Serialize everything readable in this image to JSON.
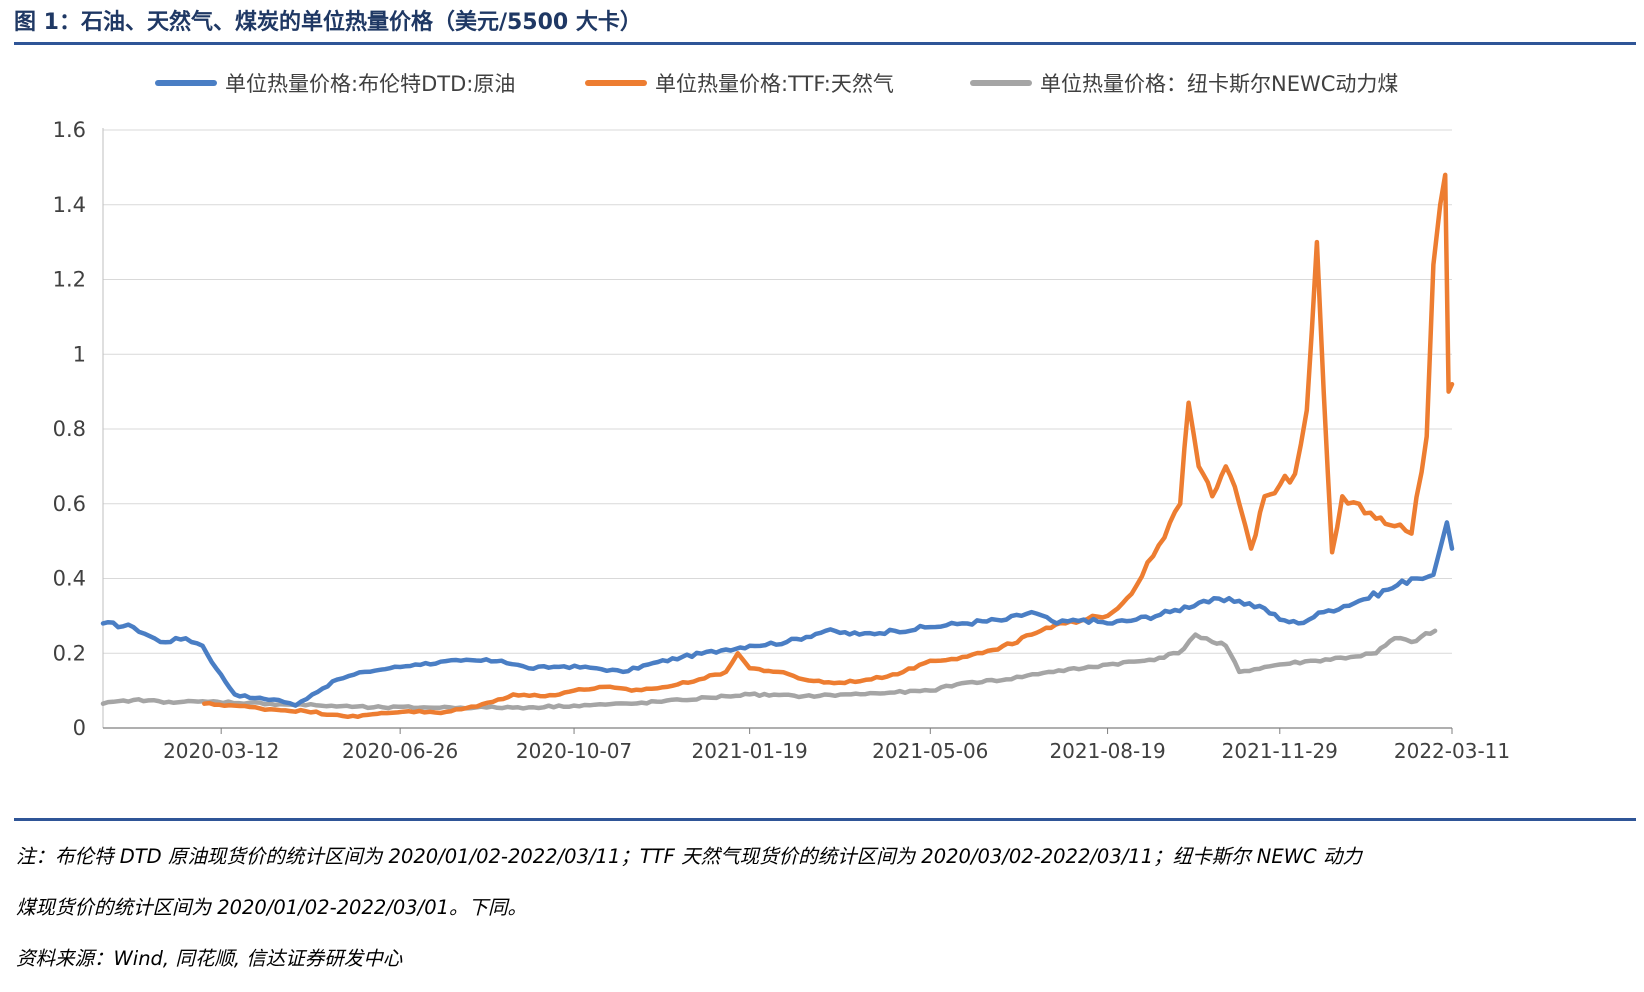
{
  "title": "图 1：石油、天然气、煤炭的单位热量价格（美元/5500 大卡）",
  "notes": {
    "line1": "注：布伦特 DTD 原油现货价的统计区间为 2020/01/02-2022/03/11；TTF 天然气现货价的统计区间为 2020/03/02-2022/03/11；纽卡斯尔 NEWC 动力",
    "line2": "煤现货价的统计区间为 2020/01/02-2022/03/01。下同。",
    "source": "资料来源：Wind, 同花顺, 信达证券研发中心"
  },
  "colors": {
    "title": "#1f3864",
    "rule": "#2f5597",
    "grid": "#d9d9d9",
    "axis_text": "#404040"
  },
  "chart_data": {
    "type": "line",
    "title": "",
    "xlabel": "",
    "ylabel": "",
    "x_ticks": [
      "2020-03-12",
      "2020-06-26",
      "2020-10-07",
      "2021-01-19",
      "2021-05-06",
      "2021-08-19",
      "2021-11-29",
      "2022-03-11"
    ],
    "y_ticks": [
      "0",
      "0.2",
      "0.4",
      "0.6",
      "0.8",
      "1",
      "1.2",
      "1.4",
      "1.6"
    ],
    "ylim": [
      0,
      1.6
    ],
    "xlim": [
      "2020-01-02",
      "2022-03-11"
    ],
    "grid": true,
    "legend_position": "top",
    "series": [
      {
        "name": "单位热量价格:布伦特DTD:原油",
        "color": "#4a7ec4",
        "points": [
          [
            "2020-01-02",
            0.28
          ],
          [
            "2020-01-20",
            0.27
          ],
          [
            "2020-02-05",
            0.23
          ],
          [
            "2020-02-20",
            0.24
          ],
          [
            "2020-03-01",
            0.22
          ],
          [
            "2020-03-09",
            0.16
          ],
          [
            "2020-03-20",
            0.09
          ],
          [
            "2020-04-01",
            0.08
          ],
          [
            "2020-04-15",
            0.075
          ],
          [
            "2020-04-25",
            0.06
          ],
          [
            "2020-05-05",
            0.09
          ],
          [
            "2020-05-20",
            0.13
          ],
          [
            "2020-06-05",
            0.15
          ],
          [
            "2020-06-20",
            0.16
          ],
          [
            "2020-07-05",
            0.17
          ],
          [
            "2020-08-01",
            0.18
          ],
          [
            "2020-08-25",
            0.18
          ],
          [
            "2020-09-10",
            0.16
          ],
          [
            "2020-10-01",
            0.165
          ],
          [
            "2020-10-20",
            0.16
          ],
          [
            "2020-11-05",
            0.15
          ],
          [
            "2020-11-20",
            0.17
          ],
          [
            "2020-12-10",
            0.19
          ],
          [
            "2021-01-05",
            0.21
          ],
          [
            "2021-01-19",
            0.22
          ],
          [
            "2021-02-10",
            0.23
          ],
          [
            "2021-03-05",
            0.26
          ],
          [
            "2021-03-25",
            0.25
          ],
          [
            "2021-04-15",
            0.26
          ],
          [
            "2021-05-06",
            0.27
          ],
          [
            "2021-05-25",
            0.28
          ],
          [
            "2021-06-20",
            0.29
          ],
          [
            "2021-07-05",
            0.31
          ],
          [
            "2021-07-20",
            0.28
          ],
          [
            "2021-08-05",
            0.29
          ],
          [
            "2021-08-19",
            0.28
          ],
          [
            "2021-09-05",
            0.29
          ],
          [
            "2021-09-25",
            0.31
          ],
          [
            "2021-10-15",
            0.34
          ],
          [
            "2021-11-05",
            0.34
          ],
          [
            "2021-11-20",
            0.32
          ],
          [
            "2021-11-29",
            0.29
          ],
          [
            "2021-12-10",
            0.28
          ],
          [
            "2021-12-25",
            0.31
          ],
          [
            "2022-01-15",
            0.34
          ],
          [
            "2022-02-01",
            0.37
          ],
          [
            "2022-02-15",
            0.4
          ],
          [
            "2022-02-28",
            0.41
          ],
          [
            "2022-03-04",
            0.48
          ],
          [
            "2022-03-08",
            0.55
          ],
          [
            "2022-03-11",
            0.48
          ]
        ]
      },
      {
        "name": "单位热量价格:TTF:天然气",
        "color": "#ed7d31",
        "points": [
          [
            "2020-03-02",
            0.065
          ],
          [
            "2020-03-20",
            0.06
          ],
          [
            "2020-04-10",
            0.05
          ],
          [
            "2020-05-01",
            0.045
          ],
          [
            "2020-05-20",
            0.035
          ],
          [
            "2020-06-01",
            0.03
          ],
          [
            "2020-06-15",
            0.04
          ],
          [
            "2020-07-01",
            0.045
          ],
          [
            "2020-07-20",
            0.04
          ],
          [
            "2020-08-01",
            0.05
          ],
          [
            "2020-08-20",
            0.07
          ],
          [
            "2020-09-01",
            0.09
          ],
          [
            "2020-09-20",
            0.085
          ],
          [
            "2020-10-07",
            0.1
          ],
          [
            "2020-10-25",
            0.11
          ],
          [
            "2020-11-10",
            0.1
          ],
          [
            "2020-12-01",
            0.11
          ],
          [
            "2020-12-20",
            0.13
          ],
          [
            "2021-01-05",
            0.15
          ],
          [
            "2021-01-12",
            0.2
          ],
          [
            "2021-01-19",
            0.16
          ],
          [
            "2021-02-05",
            0.15
          ],
          [
            "2021-02-20",
            0.13
          ],
          [
            "2021-03-10",
            0.12
          ],
          [
            "2021-04-01",
            0.13
          ],
          [
            "2021-04-20",
            0.15
          ],
          [
            "2021-05-06",
            0.18
          ],
          [
            "2021-05-25",
            0.19
          ],
          [
            "2021-06-15",
            0.21
          ],
          [
            "2021-07-05",
            0.25
          ],
          [
            "2021-07-25",
            0.28
          ],
          [
            "2021-08-10",
            0.3
          ],
          [
            "2021-08-19",
            0.3
          ],
          [
            "2021-08-25",
            0.32
          ],
          [
            "2021-09-05",
            0.38
          ],
          [
            "2021-09-15",
            0.46
          ],
          [
            "2021-09-25",
            0.55
          ],
          [
            "2021-10-01",
            0.6
          ],
          [
            "2021-10-06",
            0.87
          ],
          [
            "2021-10-12",
            0.7
          ],
          [
            "2021-10-20",
            0.62
          ],
          [
            "2021-10-28",
            0.7
          ],
          [
            "2021-11-05",
            0.6
          ],
          [
            "2021-11-12",
            0.48
          ],
          [
            "2021-11-20",
            0.62
          ],
          [
            "2021-11-29",
            0.65
          ],
          [
            "2021-12-08",
            0.68
          ],
          [
            "2021-12-15",
            0.85
          ],
          [
            "2021-12-21",
            1.3
          ],
          [
            "2021-12-25",
            0.9
          ],
          [
            "2021-12-30",
            0.47
          ],
          [
            "2022-01-05",
            0.62
          ],
          [
            "2022-01-15",
            0.6
          ],
          [
            "2022-01-25",
            0.56
          ],
          [
            "2022-02-05",
            0.54
          ],
          [
            "2022-02-15",
            0.52
          ],
          [
            "2022-02-24",
            0.78
          ],
          [
            "2022-02-28",
            1.24
          ],
          [
            "2022-03-04",
            1.4
          ],
          [
            "2022-03-07",
            1.48
          ],
          [
            "2022-03-09",
            0.9
          ],
          [
            "2022-03-11",
            0.92
          ]
        ]
      },
      {
        "name": "单位热量价格：纽卡斯尔NEWC动力煤",
        "color": "#a5a5a5",
        "points": [
          [
            "2020-01-02",
            0.065
          ],
          [
            "2020-01-20",
            0.075
          ],
          [
            "2020-02-10",
            0.07
          ],
          [
            "2020-03-10",
            0.07
          ],
          [
            "2020-04-10",
            0.065
          ],
          [
            "2020-05-10",
            0.06
          ],
          [
            "2020-06-10",
            0.055
          ],
          [
            "2020-07-10",
            0.055
          ],
          [
            "2020-08-10",
            0.055
          ],
          [
            "2020-09-10",
            0.055
          ],
          [
            "2020-10-07",
            0.06
          ],
          [
            "2020-11-10",
            0.065
          ],
          [
            "2020-12-10",
            0.075
          ],
          [
            "2021-01-05",
            0.085
          ],
          [
            "2021-01-19",
            0.09
          ],
          [
            "2021-02-20",
            0.085
          ],
          [
            "2021-03-20",
            0.09
          ],
          [
            "2021-04-15",
            0.095
          ],
          [
            "2021-05-06",
            0.1
          ],
          [
            "2021-05-25",
            0.12
          ],
          [
            "2021-06-20",
            0.13
          ],
          [
            "2021-07-15",
            0.15
          ],
          [
            "2021-08-05",
            0.16
          ],
          [
            "2021-08-19",
            0.17
          ],
          [
            "2021-09-10",
            0.18
          ],
          [
            "2021-09-30",
            0.2
          ],
          [
            "2021-10-10",
            0.25
          ],
          [
            "2021-10-20",
            0.23
          ],
          [
            "2021-10-28",
            0.22
          ],
          [
            "2021-11-05",
            0.15
          ],
          [
            "2021-11-29",
            0.17
          ],
          [
            "2021-12-20",
            0.18
          ],
          [
            "2022-01-10",
            0.19
          ],
          [
            "2022-01-25",
            0.2
          ],
          [
            "2022-02-05",
            0.24
          ],
          [
            "2022-02-15",
            0.23
          ],
          [
            "2022-03-01",
            0.26
          ]
        ]
      }
    ]
  }
}
